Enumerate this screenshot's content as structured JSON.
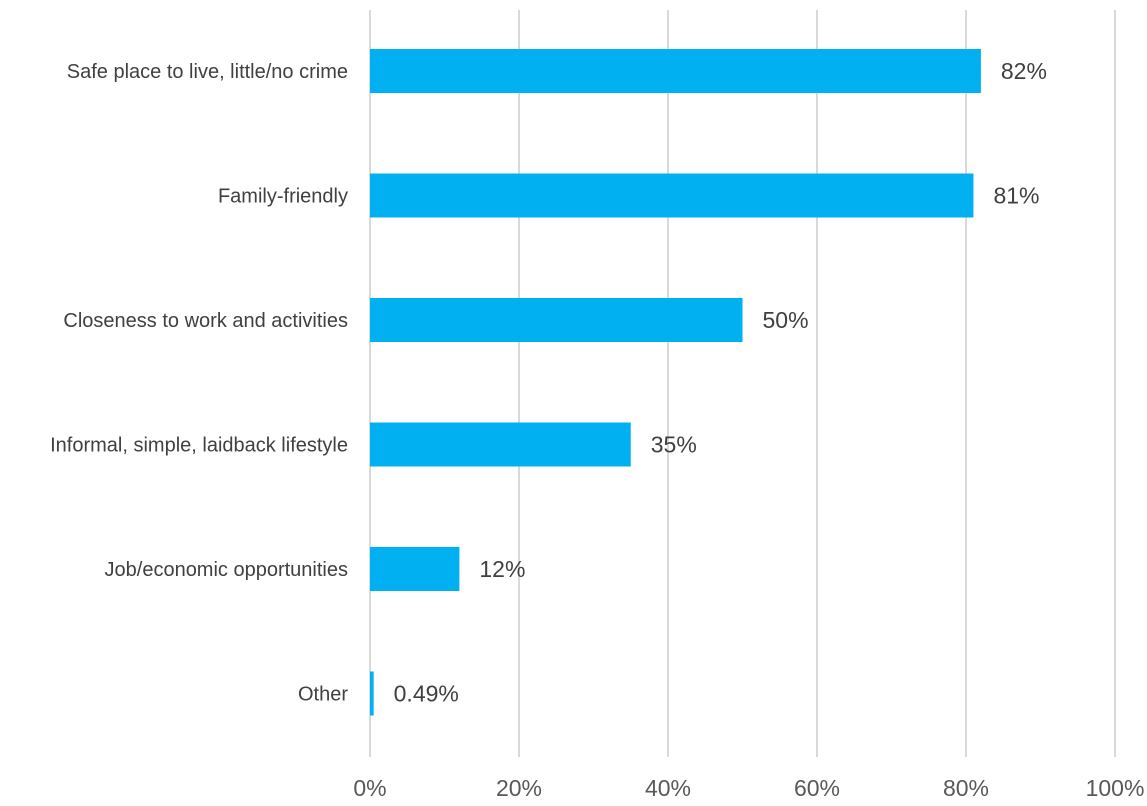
{
  "chart_data": {
    "type": "bar",
    "orientation": "horizontal",
    "title": "",
    "xlabel": "",
    "ylabel": "",
    "categories": [
      "Safe place to live, little/no crime",
      "Family-friendly",
      "Closeness to work and activities",
      "Informal, simple, laidback lifestyle",
      "Job/economic opportunities",
      "Other"
    ],
    "values": [
      82,
      81,
      50,
      35,
      12,
      0.49
    ],
    "value_labels": [
      "82%",
      "81%",
      "50%",
      "35%",
      "12%",
      "0.49%"
    ],
    "xlim": [
      0,
      100
    ],
    "x_ticks": [
      0,
      20,
      40,
      60,
      80,
      100
    ],
    "x_tick_labels": [
      "0%",
      "20%",
      "40%",
      "60%",
      "80%",
      "100%"
    ],
    "grid": "vertical",
    "legend": "none",
    "colors": {
      "bar": "#00B0F0",
      "grid": "#D9D9D9"
    }
  }
}
